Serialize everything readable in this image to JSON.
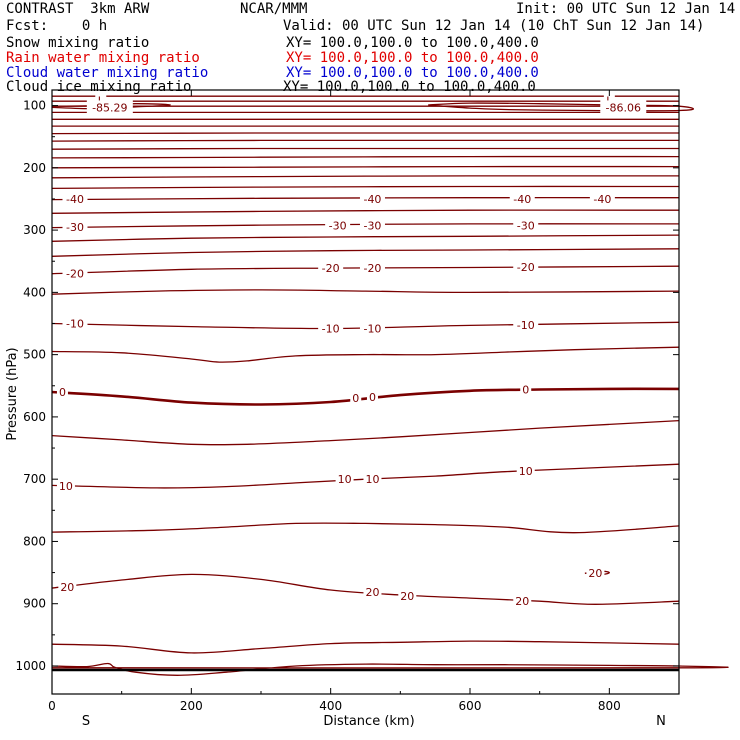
{
  "header": {
    "model": "CONTRAST  3km ARW",
    "source": "NCAR/MMM",
    "init": "Init: 00 UTC Sun 12 Jan 14",
    "fcst": "Fcst:    0 h",
    "valid": "Valid: 00 UTC Sun 12 Jan 14 (10 ChT Sun 12 Jan 14)"
  },
  "legend": [
    {
      "label": "Snow mixing ratio",
      "xy": "XY= 100.0,100.0 to 100.0,400.0",
      "color": "#000000"
    },
    {
      "label": "Rain water mixing ratio",
      "xy": "XY= 100.0,100.0 to 100.0,400.0",
      "color": "#e00000"
    },
    {
      "label": "Cloud water mixing ratio",
      "xy": "XY= 100.0,100.0 to 100.0,400.0",
      "color": "#0000d0"
    },
    {
      "label": "Cloud ice mixing ratio",
      "xy": "XY= 100.0,100.0 to 100.0,400.0",
      "color": "#000000"
    }
  ],
  "colors": {
    "contour": "#7a0000",
    "frame": "#000000"
  },
  "chart_data": {
    "type": "contour",
    "xlabel": "Distance (km)",
    "ylabel": "Pressure (hPa)",
    "xlim": [
      0,
      900
    ],
    "ylim": [
      1045,
      75
    ],
    "xticks": [
      0,
      200,
      400,
      600,
      800
    ],
    "yticks": [
      100,
      200,
      300,
      400,
      500,
      600,
      700,
      800,
      900,
      1000
    ],
    "end_labels": {
      "left": "S",
      "right": "N"
    },
    "isotherms": [
      {
        "pts": [
          [
            0,
            560
          ],
          [
            100,
            567
          ],
          [
            200,
            577
          ],
          [
            300,
            580
          ],
          [
            400,
            576
          ],
          [
            500,
            565
          ],
          [
            600,
            558
          ],
          [
            700,
            556
          ],
          [
            800,
            555
          ],
          [
            900,
            555
          ]
        ],
        "bold": true
      },
      {
        "pts": [
          [
            0,
            495
          ],
          [
            100,
            497
          ],
          [
            200,
            507
          ],
          [
            240,
            512
          ],
          [
            280,
            510
          ],
          [
            350,
            502
          ],
          [
            450,
            500
          ],
          [
            550,
            500
          ],
          [
            650,
            496
          ],
          [
            750,
            492
          ],
          [
            900,
            488
          ]
        ]
      },
      {
        "pts": [
          [
            0,
            630
          ],
          [
            100,
            637
          ],
          [
            200,
            644
          ],
          [
            280,
            644
          ],
          [
            400,
            638
          ],
          [
            500,
            632
          ],
          [
            600,
            625
          ],
          [
            700,
            618
          ],
          [
            800,
            612
          ],
          [
            900,
            606
          ]
        ]
      },
      {
        "pts": [
          [
            0,
            710
          ],
          [
            150,
            714
          ],
          [
            250,
            712
          ],
          [
            350,
            706
          ],
          [
            450,
            700
          ],
          [
            550,
            695
          ],
          [
            650,
            688
          ],
          [
            750,
            683
          ],
          [
            900,
            676
          ]
        ]
      },
      {
        "pts": [
          [
            0,
            785
          ],
          [
            150,
            782
          ],
          [
            250,
            777
          ],
          [
            350,
            771
          ],
          [
            450,
            771
          ],
          [
            550,
            773
          ],
          [
            650,
            777
          ],
          [
            750,
            786
          ],
          [
            900,
            775
          ]
        ]
      },
      {
        "pts": [
          [
            0,
            875
          ],
          [
            100,
            862
          ],
          [
            200,
            853
          ],
          [
            300,
            861
          ],
          [
            400,
            878
          ],
          [
            500,
            886
          ],
          [
            600,
            891
          ],
          [
            700,
            896
          ],
          [
            780,
            901
          ],
          [
            900,
            896
          ]
        ]
      },
      {
        "pts": [
          [
            0,
            965
          ],
          [
            100,
            968
          ],
          [
            200,
            979
          ],
          [
            300,
            972
          ],
          [
            400,
            964
          ],
          [
            500,
            962
          ],
          [
            600,
            960
          ],
          [
            700,
            961
          ],
          [
            800,
            963
          ],
          [
            900,
            965
          ]
        ]
      },
      {
        "pts": [
          [
            0,
            450
          ],
          [
            200,
            455
          ],
          [
            400,
            458
          ],
          [
            600,
            453
          ],
          [
            900,
            448
          ]
        ]
      },
      {
        "pts": [
          [
            0,
            403
          ],
          [
            150,
            398
          ],
          [
            300,
            396
          ],
          [
            450,
            398
          ],
          [
            600,
            400
          ],
          [
            900,
            398
          ]
        ]
      },
      {
        "pts": [
          [
            0,
            370
          ],
          [
            200,
            363
          ],
          [
            400,
            361
          ],
          [
            600,
            360
          ],
          [
            900,
            358
          ]
        ]
      },
      {
        "pts": [
          [
            0,
            342
          ],
          [
            200,
            336
          ],
          [
            400,
            333
          ],
          [
            600,
            332
          ],
          [
            900,
            330
          ]
        ]
      },
      {
        "pts": [
          [
            0,
            318
          ],
          [
            200,
            313
          ],
          [
            400,
            311
          ],
          [
            600,
            310
          ],
          [
            900,
            308
          ]
        ]
      },
      {
        "pts": [
          [
            0,
            296
          ],
          [
            300,
            292
          ],
          [
            600,
            290
          ],
          [
            900,
            290
          ]
        ]
      },
      {
        "pts": [
          [
            0,
            273
          ],
          [
            300,
            270
          ],
          [
            600,
            268
          ],
          [
            900,
            268
          ]
        ]
      },
      {
        "pts": [
          [
            0,
            251
          ],
          [
            300,
            249
          ],
          [
            600,
            248
          ],
          [
            900,
            248
          ]
        ]
      },
      {
        "pts": [
          [
            0,
            233
          ],
          [
            300,
            231
          ],
          [
            600,
            230
          ],
          [
            900,
            230
          ]
        ]
      },
      {
        "pts": [
          [
            0,
            216
          ],
          [
            300,
            214
          ],
          [
            600,
            213
          ],
          [
            900,
            213
          ]
        ]
      },
      {
        "pts": [
          [
            0,
            200
          ],
          [
            300,
            199
          ],
          [
            600,
            198
          ],
          [
            900,
            198
          ]
        ]
      },
      {
        "pts": [
          [
            0,
            184
          ],
          [
            300,
            183
          ],
          [
            600,
            182
          ],
          [
            900,
            182
          ]
        ]
      },
      {
        "pts": [
          [
            0,
            170
          ],
          [
            300,
            169
          ],
          [
            600,
            169
          ],
          [
            900,
            169
          ]
        ]
      },
      {
        "pts": [
          [
            0,
            157
          ],
          [
            300,
            156
          ],
          [
            600,
            156
          ],
          [
            900,
            156
          ]
        ]
      },
      {
        "pts": [
          [
            0,
            145
          ],
          [
            300,
            144
          ],
          [
            600,
            144
          ],
          [
            900,
            144
          ]
        ]
      },
      {
        "pts": [
          [
            0,
            133
          ],
          [
            300,
            133
          ],
          [
            600,
            133
          ],
          [
            900,
            133
          ]
        ]
      },
      {
        "pts": [
          [
            0,
            122
          ],
          [
            300,
            122
          ],
          [
            600,
            122
          ],
          [
            900,
            122
          ]
        ]
      },
      {
        "pts": [
          [
            0,
            111
          ],
          [
            300,
            111
          ],
          [
            600,
            111
          ],
          [
            900,
            111
          ]
        ]
      },
      {
        "pts": [
          [
            0,
            101
          ],
          [
            300,
            101
          ],
          [
            600,
            101
          ],
          [
            900,
            101
          ]
        ]
      },
      {
        "pts": [
          [
            0,
            93
          ],
          [
            300,
            93
          ],
          [
            600,
            93
          ],
          [
            900,
            93
          ]
        ]
      },
      {
        "pts": [
          [
            0,
            85
          ],
          [
            300,
            85
          ],
          [
            600,
            85
          ],
          [
            900,
            85
          ]
        ]
      }
    ],
    "closed_contours": [
      {
        "pts": [
          [
            0,
            103
          ],
          [
            60,
            105
          ],
          [
            120,
            102
          ],
          [
            170,
            99
          ],
          [
            120,
            97
          ],
          [
            60,
            100
          ],
          [
            0,
            101
          ]
        ]
      },
      {
        "pts": [
          [
            540,
            99
          ],
          [
            600,
            104
          ],
          [
            680,
            107
          ],
          [
            900,
            108
          ],
          [
            900,
            101
          ],
          [
            800,
            99
          ],
          [
            700,
            97
          ],
          [
            600,
            96
          ],
          [
            540,
            99
          ]
        ]
      },
      {
        "pts": [
          [
            765,
            851
          ],
          [
            790,
            848
          ],
          [
            800,
            850
          ],
          [
            790,
            853
          ],
          [
            765,
            851
          ]
        ]
      },
      {
        "pts": [
          [
            0,
            1000
          ],
          [
            50,
            1001
          ],
          [
            80,
            996
          ],
          [
            90,
            1002
          ],
          [
            120,
            1010
          ],
          [
            180,
            1015
          ],
          [
            250,
            1010
          ],
          [
            350,
            1000
          ],
          [
            450,
            997
          ],
          [
            550,
            998
          ],
          [
            650,
            998
          ],
          [
            800,
            999
          ],
          [
            900,
            1000
          ],
          [
            900,
            1003
          ],
          [
            0,
            1003
          ]
        ]
      }
    ],
    "contour_labels": [
      {
        "text": "L",
        "x": 70,
        "p": 92
      },
      {
        "text": "-85.29",
        "x": 83,
        "p": 103
      },
      {
        "text": "L",
        "x": 800,
        "p": 92
      },
      {
        "text": "-86.06",
        "x": 820,
        "p": 103
      },
      {
        "text": "-40",
        "x": 33,
        "p": 250
      },
      {
        "text": "-40",
        "x": 460,
        "p": 250
      },
      {
        "text": "-40",
        "x": 675,
        "p": 250
      },
      {
        "text": "-40",
        "x": 790,
        "p": 250
      },
      {
        "text": "-30",
        "x": 33,
        "p": 295
      },
      {
        "text": "-30",
        "x": 410,
        "p": 293
      },
      {
        "text": "-30",
        "x": 460,
        "p": 293
      },
      {
        "text": "-30",
        "x": 680,
        "p": 293
      },
      {
        "text": "-20",
        "x": 33,
        "p": 370
      },
      {
        "text": "-20",
        "x": 400,
        "p": 361
      },
      {
        "text": "-20",
        "x": 460,
        "p": 361
      },
      {
        "text": "-20",
        "x": 680,
        "p": 359
      },
      {
        "text": "-10",
        "x": 33,
        "p": 450
      },
      {
        "text": "-10",
        "x": 400,
        "p": 458
      },
      {
        "text": "-10",
        "x": 460,
        "p": 458
      },
      {
        "text": "-10",
        "x": 680,
        "p": 452
      },
      {
        "text": "0",
        "x": 15,
        "p": 560
      },
      {
        "text": "0",
        "x": 436,
        "p": 570
      },
      {
        "text": "0",
        "x": 460,
        "p": 568
      },
      {
        "text": "0",
        "x": 680,
        "p": 556
      },
      {
        "text": "10",
        "x": 20,
        "p": 711
      },
      {
        "text": "10",
        "x": 420,
        "p": 700
      },
      {
        "text": "10",
        "x": 460,
        "p": 700
      },
      {
        "text": "10",
        "x": 680,
        "p": 687
      },
      {
        "text": "20",
        "x": 22,
        "p": 873
      },
      {
        "text": "20",
        "x": 460,
        "p": 881
      },
      {
        "text": "20",
        "x": 510,
        "p": 888
      },
      {
        "text": "20",
        "x": 675,
        "p": 896
      },
      {
        "text": "20",
        "x": 780,
        "p": 851
      }
    ]
  }
}
